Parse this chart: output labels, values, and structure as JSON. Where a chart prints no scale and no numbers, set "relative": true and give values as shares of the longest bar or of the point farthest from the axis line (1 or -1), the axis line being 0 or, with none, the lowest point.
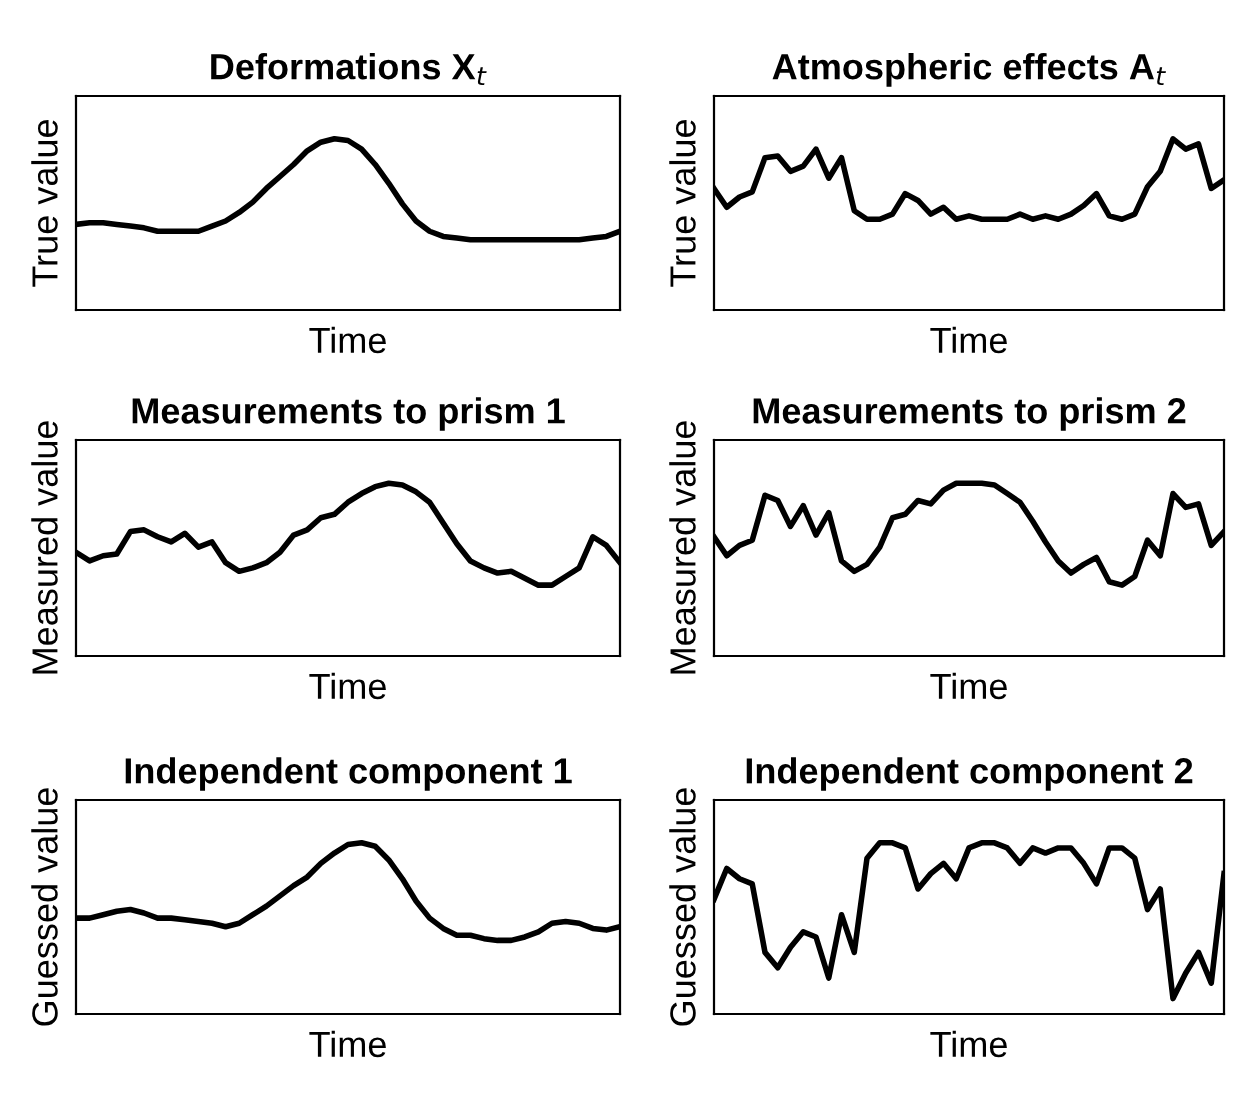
{
  "chart_data": [
    {
      "type": "line",
      "relative": true,
      "title": "Deformations X$_{t}$",
      "xlabel": "Time",
      "ylabel": "True value",
      "tick_labels": false,
      "categories": [
        null,
        null,
        null,
        null,
        null,
        null,
        null,
        null,
        null,
        null,
        null,
        null,
        null,
        null,
        null,
        null,
        null,
        null,
        null,
        null,
        null,
        null,
        null,
        null,
        null,
        null,
        null,
        null,
        null,
        null,
        null,
        null,
        null,
        null,
        null,
        null,
        null,
        null,
        null,
        null,
        null
      ],
      "series": [
        {
          "color": "#000000",
          "values": [
            0.5,
            0.51,
            0.51,
            0.5,
            0.49,
            0.48,
            0.46,
            0.46,
            0.46,
            0.46,
            0.49,
            0.52,
            0.57,
            0.63,
            0.71,
            0.78,
            0.85,
            0.93,
            0.98,
            1,
            0.99,
            0.94,
            0.85,
            0.74,
            0.62,
            0.52,
            0.46,
            0.43,
            0.42,
            0.41,
            0.41,
            0.41,
            0.41,
            0.41,
            0.41,
            0.41,
            0.41,
            0.41,
            0.42,
            0.43,
            0.46
          ]
        }
      ]
    },
    {
      "type": "line",
      "relative": true,
      "title": "Atmospheric effects A$_{t}$",
      "xlabel": "Time",
      "ylabel": "True value",
      "tick_labels": false,
      "categories": [
        null,
        null,
        null,
        null,
        null,
        null,
        null,
        null,
        null,
        null,
        null,
        null,
        null,
        null,
        null,
        null,
        null,
        null,
        null,
        null,
        null,
        null,
        null,
        null,
        null,
        null,
        null,
        null,
        null,
        null,
        null,
        null,
        null,
        null,
        null,
        null,
        null,
        null,
        null,
        null,
        null
      ],
      "series": [
        {
          "color": "#000000",
          "values": [
            0.71,
            0.6,
            0.66,
            0.69,
            0.89,
            0.9,
            0.81,
            0.84,
            0.94,
            0.77,
            0.89,
            0.58,
            0.53,
            0.53,
            0.56,
            0.68,
            0.64,
            0.56,
            0.6,
            0.53,
            0.55,
            0.53,
            0.53,
            0.53,
            0.56,
            0.53,
            0.55,
            0.53,
            0.56,
            0.61,
            0.68,
            0.55,
            0.53,
            0.56,
            0.72,
            0.81,
            1,
            0.94,
            0.97,
            0.71,
            0.76
          ]
        }
      ]
    },
    {
      "type": "line",
      "relative": true,
      "title": "Measurements to prism 1",
      "xlabel": "Time",
      "ylabel": "Measured value",
      "tick_labels": false,
      "categories": [
        null,
        null,
        null,
        null,
        null,
        null,
        null,
        null,
        null,
        null,
        null,
        null,
        null,
        null,
        null,
        null,
        null,
        null,
        null,
        null,
        null,
        null,
        null,
        null,
        null,
        null,
        null,
        null,
        null,
        null,
        null,
        null,
        null,
        null,
        null,
        null,
        null,
        null,
        null,
        null,
        null
      ],
      "series": [
        {
          "color": "#000000",
          "values": [
            0.6,
            0.55,
            0.58,
            0.59,
            0.72,
            0.73,
            0.69,
            0.66,
            0.71,
            0.63,
            0.66,
            0.54,
            0.49,
            0.51,
            0.54,
            0.6,
            0.7,
            0.73,
            0.8,
            0.82,
            0.89,
            0.94,
            0.98,
            1,
            0.99,
            0.95,
            0.89,
            0.77,
            0.65,
            0.55,
            0.51,
            0.48,
            0.49,
            0.45,
            0.41,
            0.41,
            0.46,
            0.51,
            0.69,
            0.64,
            0.54
          ]
        }
      ]
    },
    {
      "type": "line",
      "relative": true,
      "title": "Measurements to prism 2",
      "xlabel": "Time",
      "ylabel": "Measured value",
      "tick_labels": false,
      "categories": [
        null,
        null,
        null,
        null,
        null,
        null,
        null,
        null,
        null,
        null,
        null,
        null,
        null,
        null,
        null,
        null,
        null,
        null,
        null,
        null,
        null,
        null,
        null,
        null,
        null,
        null,
        null,
        null,
        null,
        null,
        null,
        null,
        null,
        null,
        null,
        null,
        null,
        null,
        null,
        null,
        null
      ],
      "series": [
        {
          "color": "#000000",
          "values": [
            0.69,
            0.58,
            0.64,
            0.67,
            0.93,
            0.9,
            0.75,
            0.87,
            0.7,
            0.83,
            0.55,
            0.49,
            0.53,
            0.63,
            0.8,
            0.82,
            0.9,
            0.88,
            0.96,
            1,
            1,
            1,
            0.99,
            0.94,
            0.89,
            0.78,
            0.66,
            0.55,
            0.48,
            0.53,
            0.57,
            0.43,
            0.41,
            0.46,
            0.67,
            0.58,
            0.94,
            0.86,
            0.88,
            0.64,
            0.72
          ]
        }
      ]
    },
    {
      "type": "line",
      "relative": true,
      "title": "Independent component 1",
      "xlabel": "Time",
      "ylabel": "Guessed value",
      "tick_labels": false,
      "categories": [
        null,
        null,
        null,
        null,
        null,
        null,
        null,
        null,
        null,
        null,
        null,
        null,
        null,
        null,
        null,
        null,
        null,
        null,
        null,
        null,
        null,
        null,
        null,
        null,
        null,
        null,
        null,
        null,
        null,
        null,
        null,
        null,
        null,
        null,
        null,
        null,
        null,
        null,
        null,
        null,
        null
      ],
      "series": [
        {
          "color": "#000000",
          "values": [
            0.56,
            0.56,
            0.58,
            0.6,
            0.61,
            0.59,
            0.56,
            0.56,
            0.55,
            0.54,
            0.53,
            0.51,
            0.53,
            0.58,
            0.63,
            0.69,
            0.75,
            0.8,
            0.88,
            0.94,
            0.99,
            1,
            0.98,
            0.9,
            0.79,
            0.66,
            0.56,
            0.5,
            0.46,
            0.46,
            0.44,
            0.43,
            0.43,
            0.45,
            0.48,
            0.53,
            0.54,
            0.53,
            0.5,
            0.49,
            0.51
          ]
        }
      ]
    },
    {
      "type": "line",
      "relative": true,
      "title": "Independent component 2",
      "xlabel": "Time",
      "ylabel": "Guessed value",
      "tick_labels": false,
      "categories": [
        null,
        null,
        null,
        null,
        null,
        null,
        null,
        null,
        null,
        null,
        null,
        null,
        null,
        null,
        null,
        null,
        null,
        null,
        null,
        null,
        null,
        null,
        null,
        null,
        null,
        null,
        null,
        null,
        null,
        null,
        null,
        null,
        null,
        null,
        null,
        null,
        null,
        null,
        null,
        null,
        null
      ],
      "series": [
        {
          "color": "#000000",
          "values": [
            0.67,
            0.85,
            0.79,
            0.76,
            0.36,
            0.27,
            0.39,
            0.48,
            0.45,
            0.21,
            0.58,
            0.36,
            0.91,
            1,
            1,
            0.97,
            0.73,
            0.82,
            0.88,
            0.79,
            0.97,
            1,
            1,
            0.97,
            0.88,
            0.97,
            0.94,
            0.97,
            0.97,
            0.88,
            0.76,
            0.97,
            0.97,
            0.91,
            0.61,
            0.73,
            0.09,
            0.24,
            0.36,
            0.18,
            0.82
          ]
        }
      ]
    }
  ]
}
